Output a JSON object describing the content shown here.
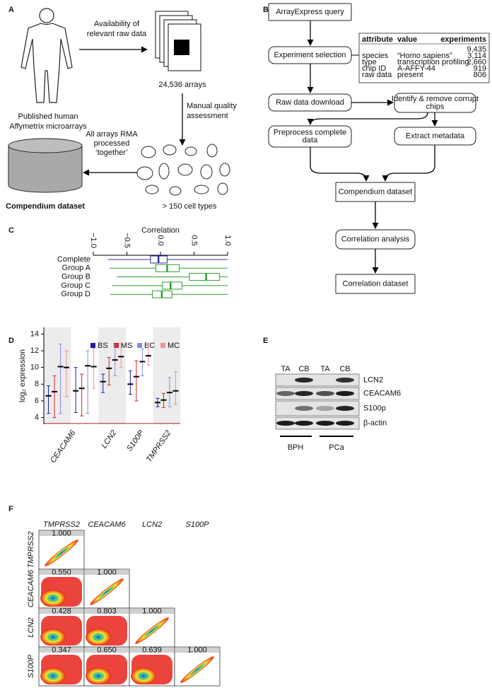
{
  "panel_labels": [
    "A",
    "B",
    "C",
    "D",
    "E",
    "F"
  ],
  "panel_a": {
    "source": [
      "Published human",
      "Affymetrix microarrays"
    ],
    "arrow_1": [
      "Availability of",
      "relevant raw data"
    ],
    "arrays": "24,536 arrays",
    "arrow_2": [
      "Manual quality",
      "assessment"
    ],
    "cell_types": "> 150 cell types",
    "arrow_3": [
      "All arrays RMA",
      "processed",
      "‘together’"
    ],
    "output": "Compendium dataset"
  },
  "panel_b": {
    "nodes": [
      [
        "ArrayExpress query"
      ],
      [
        "Experiment selection"
      ],
      [
        "Raw data download"
      ],
      [
        "Identify & remove corrupt",
        "chips"
      ],
      [
        "Preprocess complete",
        "data"
      ],
      [
        "Extract metadata"
      ],
      [
        "Compendium dataset"
      ],
      [
        "Correlation analysis"
      ],
      [
        "Correlation dataset"
      ]
    ],
    "table": {
      "header": [
        "attribute",
        "value",
        "experiments"
      ],
      "total": "9,435",
      "rows": [
        [
          "species",
          "“Homo sapiens”",
          "3,114"
        ],
        [
          "type",
          "transcription profiling",
          "2,660"
        ],
        [
          "chip ID",
          "A-AFFY-44",
          "919"
        ],
        [
          "raw data",
          "present",
          "806"
        ]
      ]
    }
  },
  "chart_data": [
    {
      "type": "boxplot",
      "title": "Correlation",
      "categories": [
        "Complete",
        "Group A",
        "Group B",
        "Group C",
        "Group D"
      ],
      "min": [
        -0.78,
        -0.76,
        -0.65,
        -0.72,
        -0.75
      ],
      "q1": [
        -0.15,
        -0.07,
        0.43,
        0.03,
        -0.12
      ],
      "median": [
        -0.03,
        0.1,
        0.68,
        0.15,
        0.02
      ],
      "q3": [
        0.1,
        0.28,
        0.88,
        0.32,
        0.17
      ],
      "max": [
        1.0,
        1.0,
        1.0,
        1.0,
        1.0
      ],
      "colors": [
        "#2f2f9f",
        "#2e9e2e",
        "#2e9e2e",
        "#2e9e2e",
        "#2e9e2e"
      ],
      "xlim": [
        -1,
        1
      ],
      "xticks": [
        {
          "value": -1,
          "label": "−1.0"
        },
        {
          "value": -0.5,
          "label": "−0.5"
        },
        {
          "value": 0,
          "label": "0.0"
        },
        0.5,
        {
          "value": 1,
          "label": "1.0"
        }
      ]
    },
    {
      "type": "errorbar",
      "ylabel": "log₂ expression",
      "categories": [
        "CEACAM6",
        null,
        "LCN2",
        "S100P",
        "TMPRSS2"
      ],
      "series": [
        {
          "name": "BS",
          "color": "#1c1ca8",
          "values": [
            6.6,
            7.2,
            8.3,
            8.0,
            5.8
          ],
          "low": [
            4.5,
            4.6,
            7.0,
            6.8,
            5.3
          ],
          "high": [
            7.8,
            10.0,
            9.2,
            9.6,
            6.3
          ]
        },
        {
          "name": "MS",
          "color": "#d42424",
          "values": [
            7.1,
            7.5,
            9.9,
            8.9,
            6.1
          ],
          "low": [
            4.0,
            4.2,
            7.9,
            6.0,
            5.2
          ],
          "high": [
            9.0,
            9.2,
            11.2,
            10.8,
            6.9
          ]
        },
        {
          "name": "BC",
          "color": "#8a8ae4",
          "values": [
            10.1,
            10.2,
            10.9,
            10.7,
            7.0
          ],
          "low": [
            4.5,
            4.5,
            9.0,
            9.0,
            5.3
          ],
          "high": [
            12.8,
            12.0,
            12.7,
            12.2,
            8.8
          ]
        },
        {
          "name": "MC",
          "color": "#f09090",
          "values": [
            10.0,
            10.1,
            11.3,
            11.4,
            7.2
          ],
          "low": [
            6.5,
            7.5,
            10.0,
            10.3,
            5.6
          ],
          "high": [
            12.0,
            12.3,
            12.9,
            12.9,
            9.5
          ]
        }
      ],
      "ylim": [
        3.2,
        14.8
      ],
      "yticks": [
        4,
        6,
        8,
        10,
        12,
        14
      ],
      "reference_line": 3.3,
      "reference_color": "#b22222"
    }
  ],
  "panel_e": {
    "lanes": [
      "TA",
      "CB",
      "TA",
      "CB"
    ],
    "proteins": [
      "LCN2",
      "CEACAM6",
      "S100p",
      "β-actin"
    ],
    "groups": [
      "BPH",
      "PCa"
    ]
  },
  "panel_f": {
    "genes": [
      "TMPRSS2",
      "CEACAM6",
      "LCN2",
      "S100P"
    ],
    "correlations": [
      [
        "1.000"
      ],
      [
        "0.550",
        "1.000"
      ],
      [
        "0.428",
        "0.803",
        "1.000"
      ],
      [
        "0.347",
        "0.650",
        "0.639",
        "1.000"
      ]
    ]
  }
}
